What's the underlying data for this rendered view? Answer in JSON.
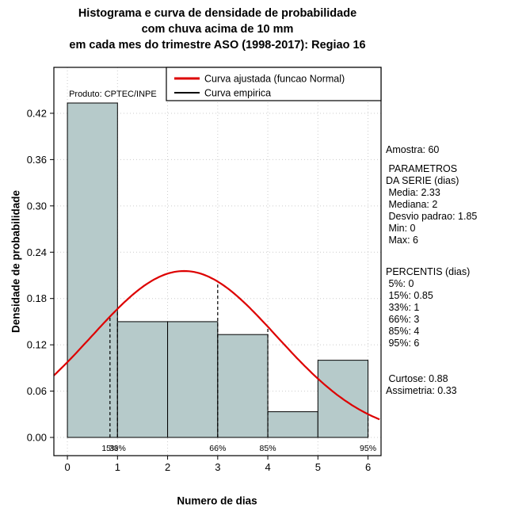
{
  "chart_data": {
    "type": "bar",
    "subtype": "histogram-with-fitted-normal-density",
    "title_lines": [
      "Histograma e curva de densidade de probabilidade",
      "com chuva acima de 10 mm",
      "em cada mes do trimestre ASO (1998-2017): Regiao 16"
    ],
    "xlabel": "Numero de dias",
    "ylabel": "Densidade de probabilidade",
    "annotation": "Produto: CPTEC/INPE",
    "bin_edges": [
      0,
      1,
      2,
      3,
      4,
      5,
      6
    ],
    "bars": [
      0.4333,
      0.15,
      0.15,
      0.1333,
      0.0333,
      0.1
    ],
    "normal_curve": {
      "mean": 2.33,
      "sd": 1.85
    },
    "percentiles": [
      {
        "label": "15%",
        "x": 0.85
      },
      {
        "label": "33%",
        "x": 1
      },
      {
        "label": "66%",
        "x": 3
      },
      {
        "label": "85%",
        "x": 4
      },
      {
        "label": "95%",
        "x": 6
      }
    ],
    "x_tick_values": [
      0,
      1,
      2,
      3,
      4,
      5,
      6
    ],
    "x_tick_labels": [
      "0",
      "1",
      "2",
      "3",
      "4",
      "5",
      "6"
    ],
    "y_tick_values": [
      0,
      0.06,
      0.12,
      0.18,
      0.24,
      0.3,
      0.36,
      0.42
    ],
    "y_tick_labels": [
      "0.00",
      "0.06",
      "0.12",
      "0.18",
      "0.24",
      "0.30",
      "0.36",
      "0.42"
    ],
    "xlim": [
      -0.27,
      6.26
    ],
    "ylim": [
      -0.0236,
      0.4795
    ],
    "grid": true,
    "legend_position": "top-right",
    "legend": [
      {
        "label": "Curva ajustada (funcao Normal)",
        "color": "#dd0000"
      },
      {
        "label": "Curva empirica",
        "color": "#000000"
      }
    ],
    "colors": {
      "bar_fill": "#b6caca",
      "bar_stroke": "#000000",
      "curve": "#dd0000",
      "grid": "#cccccc"
    }
  },
  "stats": {
    "amostra": "Amostra: 60",
    "parametros_header_1": " PARAMETROS",
    "parametros_header_2": "DA SERIE (dias)",
    "media": " Media: 2.33",
    "mediana": " Mediana: 2",
    "desvio_padrao": " Desvio padrao: 1.85",
    "min": " Min: 0",
    "max": " Max: 6",
    "percentis_header": "PERCENTIS (dias)",
    "p5": " 5%: 0",
    "p15": " 15%: 0.85",
    "p33": " 33%: 1",
    "p66": " 66%: 3",
    "p85": " 85%: 4",
    "p95": " 95%: 6",
    "curtose": " Curtose: 0.88",
    "assimetria": "Assimetria: 0.33"
  }
}
